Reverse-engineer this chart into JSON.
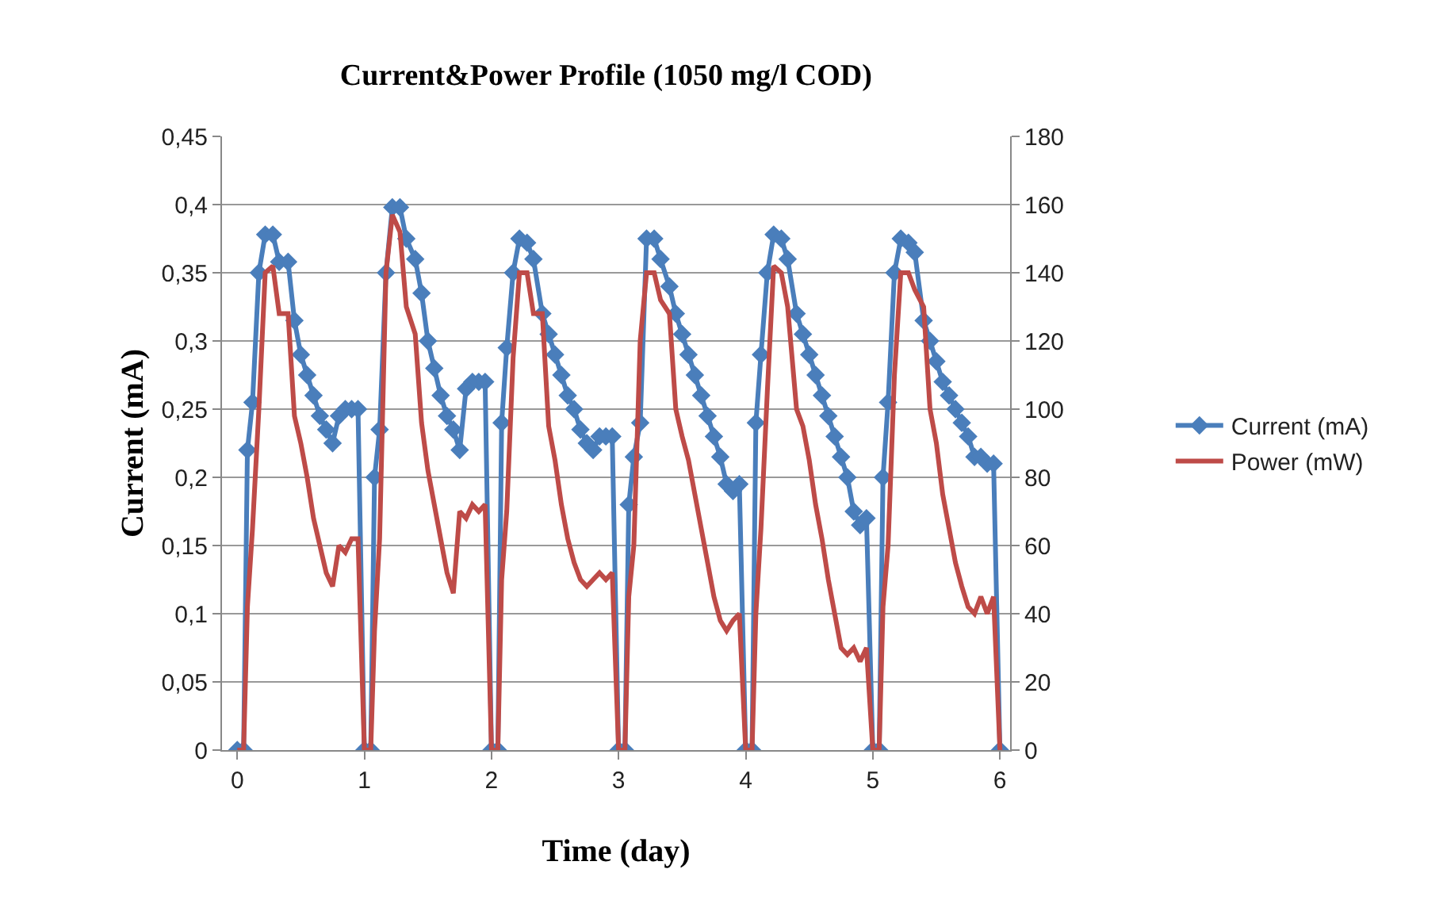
{
  "chart_data": {
    "type": "line",
    "title": "Current&Power Profile (1050 mg/l COD)",
    "xlabel": "Time (day)",
    "ylabel": "Current (mA)",
    "x": [
      0,
      0.05,
      0.08,
      0.12,
      0.17,
      0.22,
      0.28,
      0.33,
      0.4,
      0.45,
      0.5,
      0.55,
      0.6,
      0.65,
      0.7,
      0.75,
      0.8,
      0.85,
      0.9,
      0.95,
      1,
      1.05,
      1.08,
      1.12,
      1.17,
      1.22,
      1.28,
      1.33,
      1.4,
      1.45,
      1.5,
      1.55,
      1.6,
      1.65,
      1.7,
      1.75,
      1.8,
      1.85,
      1.9,
      1.95,
      2,
      2.05,
      2.08,
      2.12,
      2.17,
      2.22,
      2.28,
      2.33,
      2.4,
      2.45,
      2.5,
      2.55,
      2.6,
      2.65,
      2.7,
      2.75,
      2.8,
      2.85,
      2.9,
      2.95,
      3,
      3.05,
      3.08,
      3.12,
      3.17,
      3.22,
      3.28,
      3.33,
      3.4,
      3.45,
      3.5,
      3.55,
      3.6,
      3.65,
      3.7,
      3.75,
      3.8,
      3.85,
      3.9,
      3.95,
      4,
      4.05,
      4.08,
      4.12,
      4.17,
      4.22,
      4.28,
      4.33,
      4.4,
      4.45,
      4.5,
      4.55,
      4.6,
      4.65,
      4.7,
      4.75,
      4.8,
      4.85,
      4.9,
      4.95,
      5,
      5.05,
      5.08,
      5.12,
      5.17,
      5.22,
      5.28,
      5.33,
      5.4,
      5.45,
      5.5,
      5.55,
      5.6,
      5.65,
      5.7,
      5.75,
      5.8,
      5.85,
      5.9,
      5.95,
      6
    ],
    "series": [
      {
        "name": "Current (mA)",
        "color": "#4a7ebb",
        "marker": "diamond",
        "values": [
          0,
          0,
          0.22,
          0.255,
          0.35,
          0.378,
          0.378,
          0.358,
          0.358,
          0.315,
          0.29,
          0.275,
          0.26,
          0.245,
          0.235,
          0.225,
          0.245,
          0.25,
          0.25,
          0.25,
          0,
          0,
          0.2,
          0.235,
          0.35,
          0.398,
          0.398,
          0.375,
          0.36,
          0.335,
          0.3,
          0.28,
          0.26,
          0.245,
          0.235,
          0.22,
          0.265,
          0.27,
          0.27,
          0.27,
          0,
          0,
          0.24,
          0.295,
          0.35,
          0.375,
          0.372,
          0.36,
          0.32,
          0.305,
          0.29,
          0.275,
          0.26,
          0.25,
          0.235,
          0.225,
          0.22,
          0.23,
          0.23,
          0.23,
          0,
          0,
          0.18,
          0.215,
          0.24,
          0.375,
          0.375,
          0.36,
          0.34,
          0.32,
          0.305,
          0.29,
          0.275,
          0.26,
          0.245,
          0.23,
          0.215,
          0.195,
          0.19,
          0.195,
          0,
          0,
          0.24,
          0.29,
          0.35,
          0.378,
          0.375,
          0.36,
          0.32,
          0.305,
          0.29,
          0.275,
          0.26,
          0.245,
          0.23,
          0.215,
          0.2,
          0.175,
          0.165,
          0.17,
          0,
          0,
          0.2,
          0.255,
          0.35,
          0.375,
          0.372,
          0.365,
          0.315,
          0.3,
          0.285,
          0.27,
          0.26,
          0.25,
          0.24,
          0.23,
          0.215,
          0.215,
          0.21,
          0.21,
          0
        ]
      },
      {
        "name": "Power (mW)",
        "color": "#be4b48",
        "marker": "none",
        "axis": "y2",
        "values": [
          0,
          0,
          42,
          65,
          100,
          140,
          142,
          128,
          128,
          98,
          90,
          80,
          68,
          60,
          52,
          48,
          60,
          58,
          62,
          62,
          0,
          0,
          35,
          62,
          140,
          157,
          152,
          130,
          122,
          96,
          82,
          72,
          62,
          52,
          46,
          70,
          68,
          72,
          70,
          72,
          0,
          0,
          50,
          70,
          115,
          140,
          140,
          128,
          128,
          95,
          85,
          72,
          62,
          55,
          50,
          48,
          50,
          52,
          50,
          52,
          0,
          0,
          45,
          60,
          120,
          140,
          140,
          132,
          128,
          100,
          92,
          85,
          75,
          65,
          55,
          45,
          38,
          35,
          38,
          40,
          0,
          0,
          40,
          65,
          105,
          142,
          140,
          130,
          100,
          95,
          85,
          72,
          62,
          50,
          40,
          30,
          28,
          30,
          26,
          30,
          0,
          0,
          42,
          60,
          110,
          140,
          140,
          135,
          130,
          100,
          90,
          75,
          65,
          55,
          48,
          42,
          40,
          45,
          40,
          45,
          0
        ]
      }
    ],
    "xlim": [
      -0.12,
      6.08
    ],
    "xticks": [
      0,
      1,
      2,
      3,
      4,
      5,
      6
    ],
    "ylim": [
      0,
      0.45
    ],
    "yticks": [
      0,
      {
        "value": 0.05,
        "label": "0,05"
      },
      {
        "value": 0.1,
        "label": "0,1"
      },
      {
        "value": 0.15,
        "label": "0,15"
      },
      {
        "value": 0.2,
        "label": "0,2"
      },
      {
        "value": 0.25,
        "label": "0,25"
      },
      {
        "value": 0.3,
        "label": "0,3"
      },
      {
        "value": 0.35,
        "label": "0,35"
      },
      {
        "value": 0.4,
        "label": "0,4"
      },
      {
        "value": 0.45,
        "label": "0,45"
      }
    ],
    "y2lim": [
      0,
      180
    ],
    "y2ticks": [
      0,
      20,
      40,
      60,
      80,
      100,
      120,
      140,
      160,
      180
    ],
    "grid": "y",
    "legend": "right"
  }
}
